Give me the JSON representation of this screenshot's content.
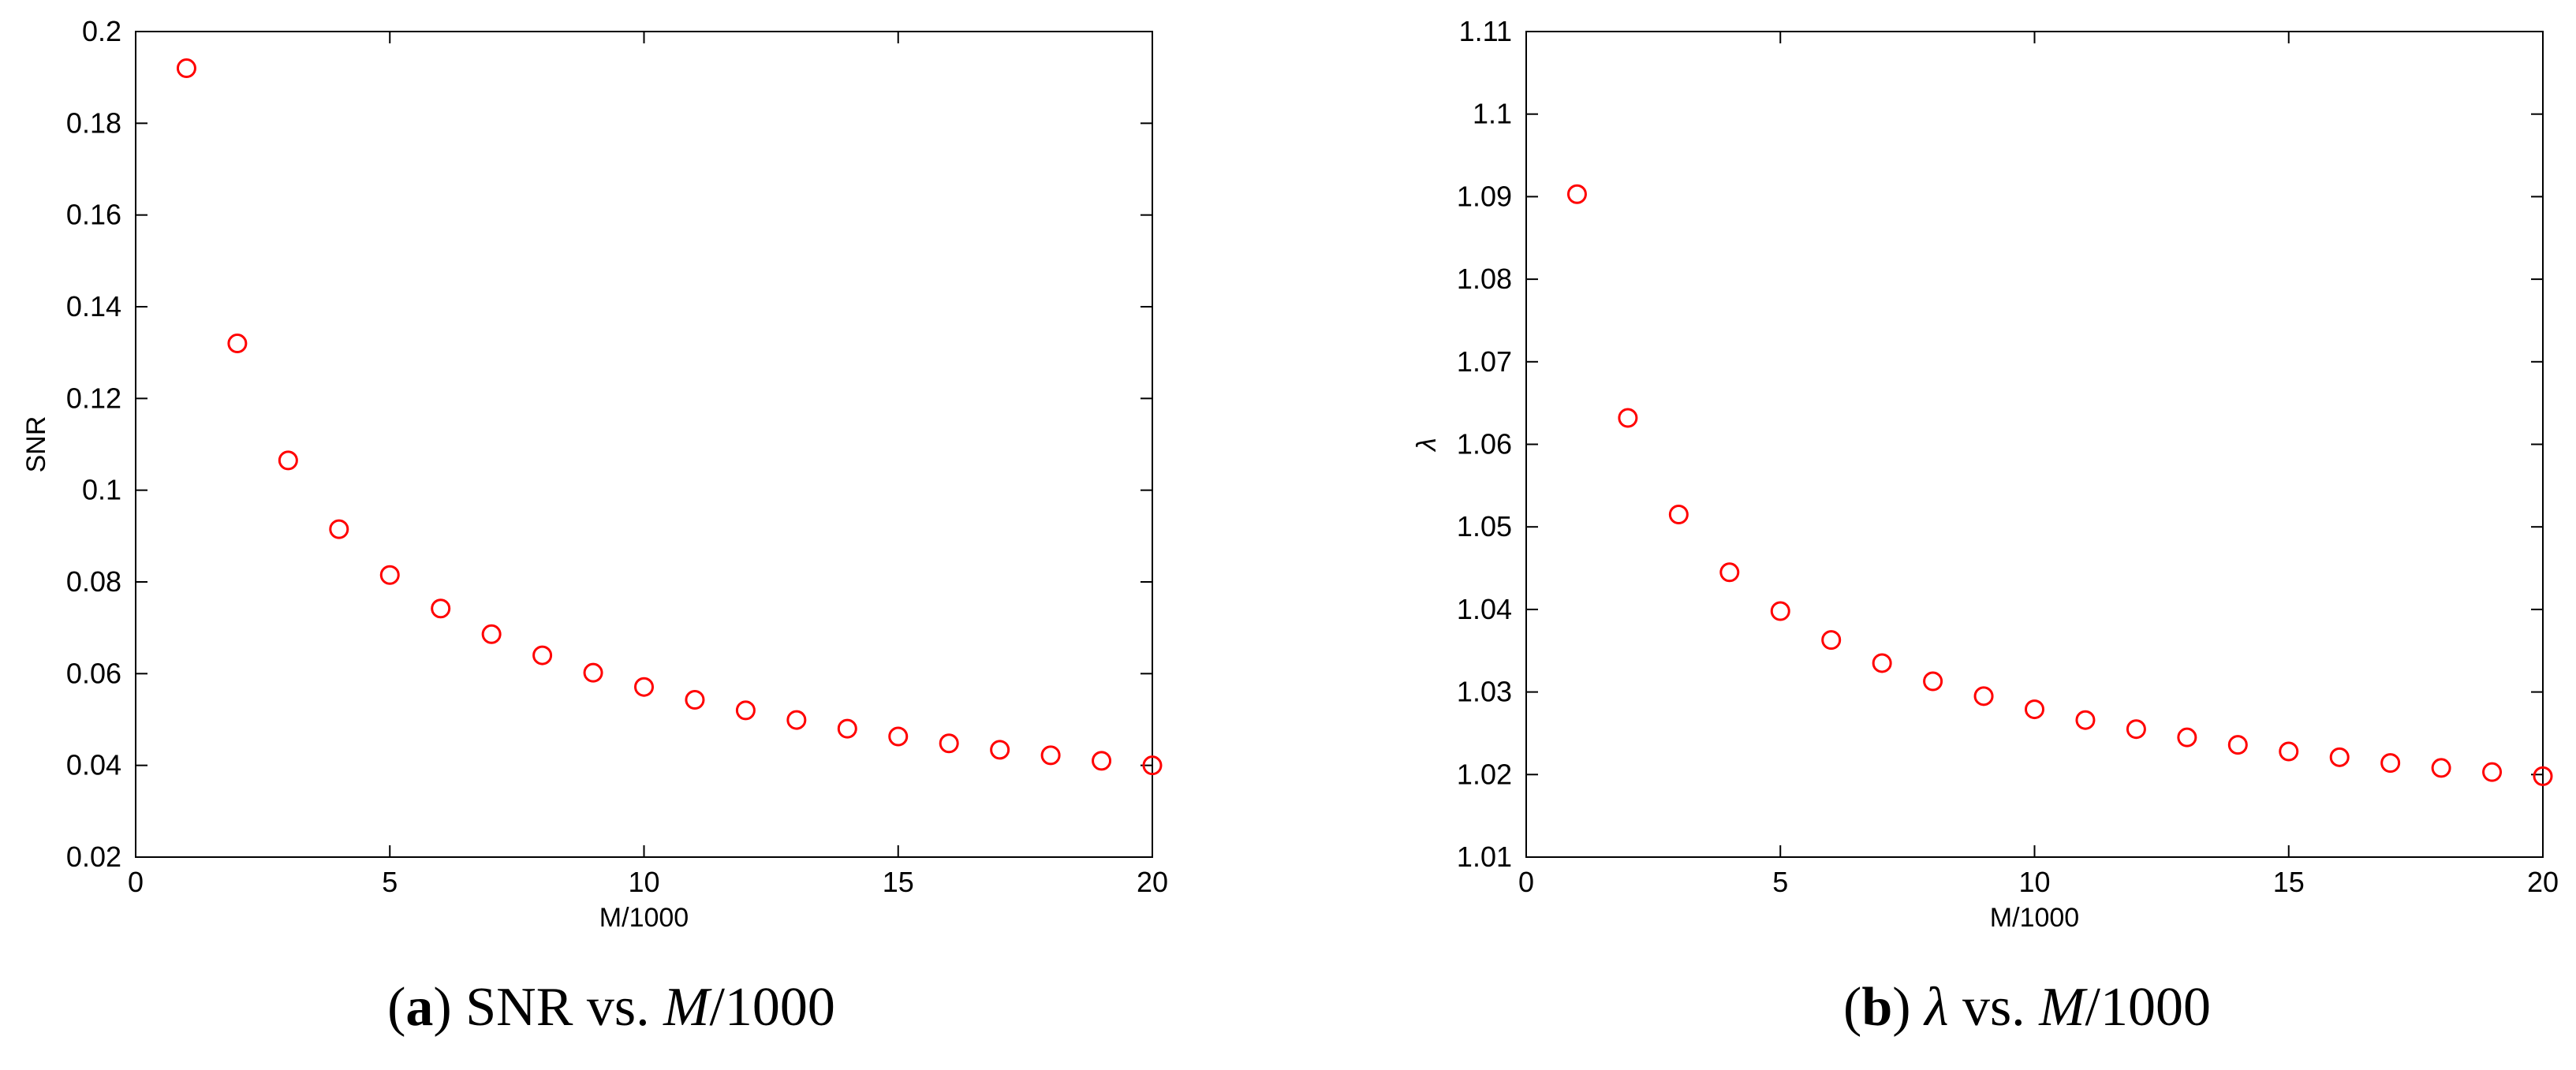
{
  "figure": {
    "captions": [
      {
        "tag": "a",
        "prefix": "",
        "title_main": "SNR vs. ",
        "title_italic": "M",
        "title_tail": "/1000"
      },
      {
        "tag": "b",
        "prefix": "λ",
        "title_main": " vs. ",
        "title_italic": "M",
        "title_tail": "/1000"
      }
    ]
  },
  "chart_data": [
    {
      "type": "scatter",
      "title": "",
      "xlabel": "M/1000",
      "ylabel": "SNR",
      "xlim": [
        0,
        20
      ],
      "ylim": [
        0.02,
        0.2
      ],
      "xticks": [
        0,
        5,
        10,
        15,
        20
      ],
      "yticks": [
        0.02,
        0.04,
        0.06,
        0.08,
        0.1,
        0.12,
        0.14,
        0.16,
        0.18,
        0.2
      ],
      "ytick_labels": [
        "0.02",
        "0.04",
        "0.06",
        "0.08",
        "0.1",
        "0.12",
        "0.14",
        "0.16",
        "0.18",
        "0.2"
      ],
      "grid": false,
      "marker": "circle-open",
      "marker_color": "#ff0000",
      "x": [
        1,
        2,
        3,
        4,
        5,
        6,
        7,
        8,
        9,
        10,
        11,
        12,
        13,
        14,
        15,
        16,
        17,
        18,
        19,
        20
      ],
      "y": [
        0.192,
        0.132,
        0.1065,
        0.0915,
        0.0815,
        0.0742,
        0.0686,
        0.064,
        0.0602,
        0.0571,
        0.0543,
        0.052,
        0.0499,
        0.048,
        0.0463,
        0.0448,
        0.0434,
        0.0422,
        0.041,
        0.04
      ]
    },
    {
      "type": "scatter",
      "title": "",
      "xlabel": "M/1000",
      "ylabel": "λ",
      "xlim": [
        0,
        20
      ],
      "ylim": [
        1.01,
        1.11
      ],
      "xticks": [
        0,
        5,
        10,
        15,
        20
      ],
      "yticks": [
        1.01,
        1.02,
        1.03,
        1.04,
        1.05,
        1.06,
        1.07,
        1.08,
        1.09,
        1.1,
        1.11
      ],
      "ytick_labels": [
        "1.01",
        "1.02",
        "1.03",
        "1.04",
        "1.05",
        "1.06",
        "1.07",
        "1.08",
        "1.09",
        "1.1",
        "1.11"
      ],
      "grid": false,
      "marker": "circle-open",
      "marker_color": "#ff0000",
      "x": [
        1,
        2,
        3,
        4,
        5,
        6,
        7,
        8,
        9,
        10,
        11,
        12,
        13,
        14,
        15,
        16,
        17,
        18,
        19,
        20
      ],
      "y": [
        1.0903,
        1.0632,
        1.0515,
        1.0445,
        1.0398,
        1.0363,
        1.0335,
        1.0313,
        1.0295,
        1.0279,
        1.0266,
        1.0255,
        1.0245,
        1.0236,
        1.0228,
        1.0221,
        1.0214,
        1.0208,
        1.0203,
        1.0198
      ]
    }
  ]
}
